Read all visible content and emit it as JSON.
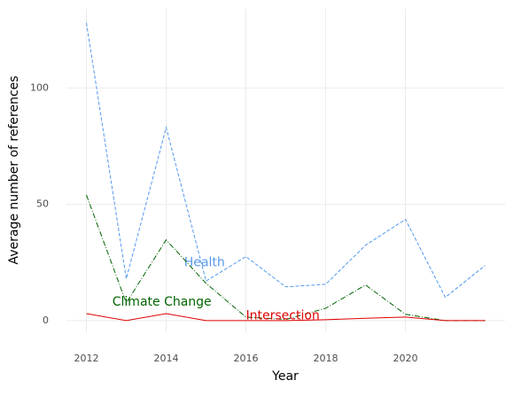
{
  "chart_data": {
    "type": "line",
    "x_label": "Year",
    "y_label": "Average number of references",
    "x": [
      2012,
      2013,
      2014,
      2015,
      2016,
      2017,
      2018,
      2019,
      2020,
      2021,
      2022
    ],
    "series": [
      {
        "name": "Health",
        "color": "#5599ee",
        "dash": "4,2",
        "values": [
          128,
          18,
          83,
          17,
          27.5,
          14.5,
          15.6,
          32.4,
          43.5,
          10,
          23.7
        ],
        "label_x": 2014.45,
        "label_y": 24.8
      },
      {
        "name": "Climate Change",
        "color": "#006400",
        "dash": "6,2,1,2",
        "values": [
          54,
          7.6,
          34.7,
          16,
          1.5,
          0.5,
          5.3,
          15.3,
          2.7,
          0,
          0
        ],
        "label_x": 2012.65,
        "label_y": 8
      },
      {
        "name": "Intersection",
        "color": "#e00000",
        "dash": "",
        "values": [
          3,
          0,
          3,
          0,
          0,
          0,
          0.4,
          1,
          1.5,
          0,
          0
        ],
        "label_x": 2016,
        "label_y": 2
      }
    ],
    "xlim": [
      2011.5,
      2022.5
    ],
    "ylim": [
      -5,
      134
    ],
    "xticks": [
      2012,
      2014,
      2016,
      2018,
      2020
    ],
    "yticks": [
      0,
      50,
      100
    ],
    "grid": true
  }
}
